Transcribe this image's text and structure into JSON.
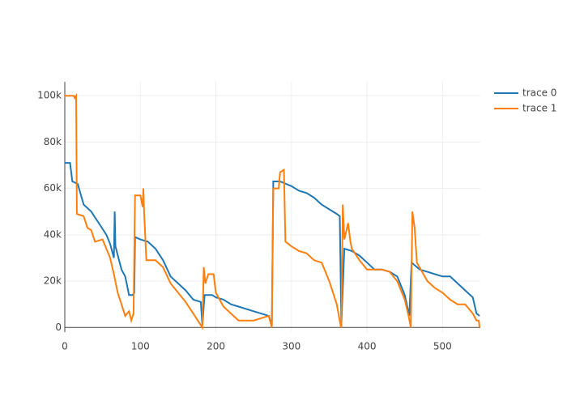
{
  "chart_data": {
    "type": "line",
    "xlim": [
      0,
      550
    ],
    "xticks": [
      0,
      100,
      200,
      300,
      400,
      500
    ],
    "ylim": [
      -2000,
      106000
    ],
    "yticks": [
      0,
      {
        "value": 20000,
        "label": "20k"
      },
      {
        "value": 40000,
        "label": "40k"
      },
      {
        "value": 60000,
        "label": "60k"
      },
      {
        "value": 80000,
        "label": "80k"
      },
      {
        "value": 100000,
        "label": "100k"
      }
    ],
    "grid": true,
    "legend": "top-right",
    "series": [
      {
        "name": "trace 0",
        "color": "#1f77b4",
        "x": [
          0,
          7,
          10,
          17,
          25,
          35,
          45,
          55,
          60,
          65,
          66,
          67,
          75,
          80,
          85,
          90,
          92,
          93,
          100,
          110,
          120,
          130,
          140,
          150,
          160,
          170,
          180,
          182,
          185,
          195,
          200,
          210,
          220,
          230,
          240,
          250,
          260,
          270,
          274,
          276,
          285,
          300,
          310,
          320,
          330,
          340,
          350,
          360,
          364,
          366,
          370,
          380,
          390,
          400,
          410,
          420,
          430,
          440,
          450,
          456,
          459,
          470,
          480,
          490,
          500,
          510,
          520,
          530,
          540,
          545,
          549
        ],
        "values": [
          71000,
          71000,
          63000,
          62000,
          53000,
          50000,
          45000,
          40000,
          36000,
          30000,
          50000,
          35000,
          25000,
          22000,
          14000,
          14000,
          15000,
          39000,
          38000,
          37000,
          34000,
          29000,
          22000,
          19000,
          16000,
          12000,
          11000,
          1000,
          14000,
          14000,
          13000,
          12000,
          10000,
          9000,
          8000,
          7000,
          6000,
          5000,
          1000,
          63000,
          63000,
          61000,
          59000,
          58000,
          56000,
          53000,
          51000,
          49000,
          48000,
          1000,
          34000,
          33000,
          31000,
          28000,
          25000,
          25000,
          24000,
          22000,
          14000,
          5000,
          28000,
          25000,
          24000,
          23000,
          22000,
          22000,
          19000,
          16000,
          13000,
          6000,
          5000
        ]
      },
      {
        "name": "trace 1",
        "color": "#ff7f0e",
        "x": [
          0,
          12,
          13,
          15,
          16,
          25,
          30,
          35,
          40,
          50,
          55,
          60,
          65,
          70,
          75,
          80,
          85,
          88,
          90,
          91,
          93,
          100,
          103,
          104,
          105,
          108,
          120,
          130,
          140,
          150,
          160,
          170,
          180,
          182,
          184,
          186,
          190,
          197,
          200,
          210,
          220,
          230,
          240,
          250,
          260,
          270,
          274,
          276,
          283,
          285,
          290,
          292,
          300,
          310,
          320,
          330,
          340,
          350,
          360,
          365,
          366,
          368,
          370,
          375,
          378,
          380,
          390,
          400,
          410,
          420,
          430,
          440,
          450,
          455,
          458,
          460,
          463,
          466,
          480,
          490,
          500,
          510,
          520,
          530,
          540,
          545,
          548,
          549
        ],
        "values": [
          100000,
          100000,
          99000,
          100000,
          49000,
          48000,
          43000,
          42000,
          37000,
          38000,
          34000,
          30000,
          23000,
          15000,
          10000,
          5000,
          7000,
          3000,
          5000,
          6000,
          57000,
          57000,
          52000,
          60000,
          50000,
          29000,
          29000,
          26000,
          19000,
          15000,
          11000,
          6000,
          1000,
          0,
          26000,
          19000,
          23000,
          23000,
          15000,
          9000,
          6000,
          3000,
          3000,
          3000,
          4000,
          5000,
          0,
          60000,
          60000,
          67000,
          68000,
          37000,
          35000,
          33000,
          32000,
          29000,
          28000,
          20000,
          10000,
          1000,
          0,
          53000,
          38000,
          45000,
          37000,
          34000,
          29000,
          25000,
          25000,
          25000,
          24000,
          20000,
          12000,
          5000,
          0,
          50000,
          43000,
          28000,
          20000,
          17000,
          15000,
          12000,
          10000,
          10000,
          6000,
          3000,
          3000,
          0
        ]
      }
    ]
  }
}
